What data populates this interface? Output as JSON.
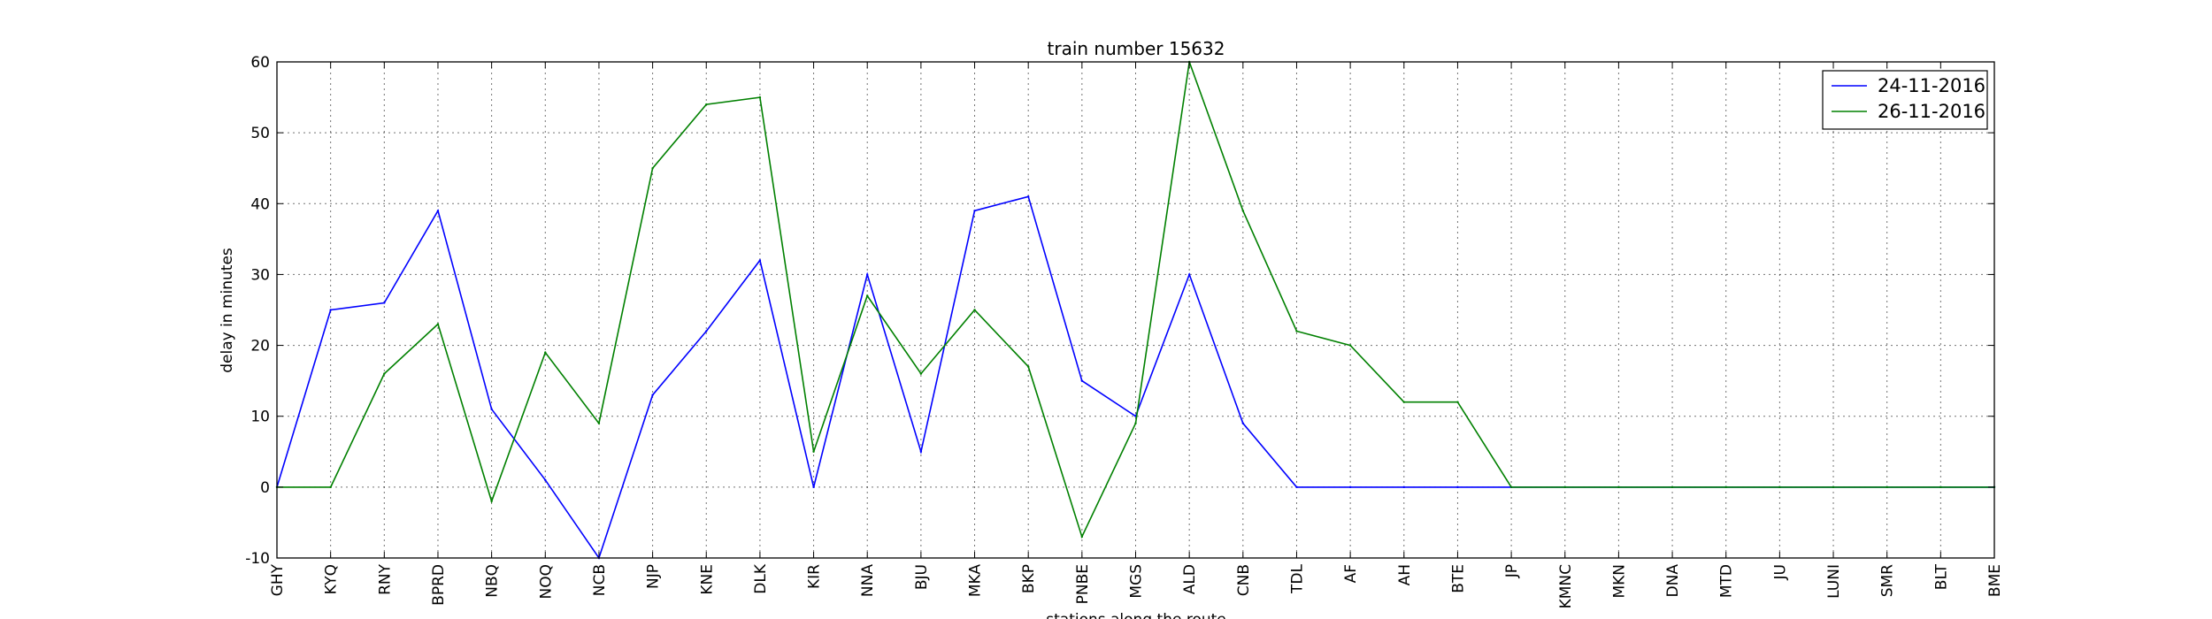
{
  "chart_data": {
    "type": "line",
    "title": "train number 15632",
    "xlabel": "stations along the route",
    "ylabel": "delay in minutes",
    "ylim": [
      -10,
      60
    ],
    "yticks": [
      -10,
      0,
      10,
      20,
      30,
      40,
      50,
      60
    ],
    "grid": true,
    "legend_position": "top-right",
    "categories": [
      "GHY",
      "KYQ",
      "RNY",
      "BPRD",
      "NBQ",
      "NOQ",
      "NCB",
      "NJP",
      "KNE",
      "DLK",
      "KIR",
      "NNA",
      "BJU",
      "MKA",
      "BKP",
      "PNBE",
      "MGS",
      "ALD",
      "CNB",
      "TDL",
      "AF",
      "AH",
      "BTE",
      "JP",
      "KMNC",
      "MKN",
      "DNA",
      "MTD",
      "JU",
      "LUNI",
      "SMR",
      "BLT",
      "BME"
    ],
    "series": [
      {
        "name": "24-11-2016",
        "color": "#0000ff",
        "values": [
          0,
          25,
          26,
          39,
          11,
          1,
          -10,
          13,
          22,
          32,
          0,
          30,
          5,
          39,
          41,
          15,
          10,
          30,
          9,
          0,
          0,
          0,
          0,
          0,
          0,
          0,
          0,
          0,
          0,
          0,
          0,
          0,
          0
        ]
      },
      {
        "name": "26-11-2016",
        "color": "#008000",
        "values": [
          0,
          0,
          16,
          23,
          -2,
          19,
          9,
          45,
          54,
          55,
          5,
          27,
          16,
          25,
          17,
          -7,
          9,
          60,
          39,
          22,
          20,
          12,
          12,
          0,
          0,
          0,
          0,
          0,
          0,
          0,
          0,
          0,
          0
        ]
      }
    ]
  }
}
